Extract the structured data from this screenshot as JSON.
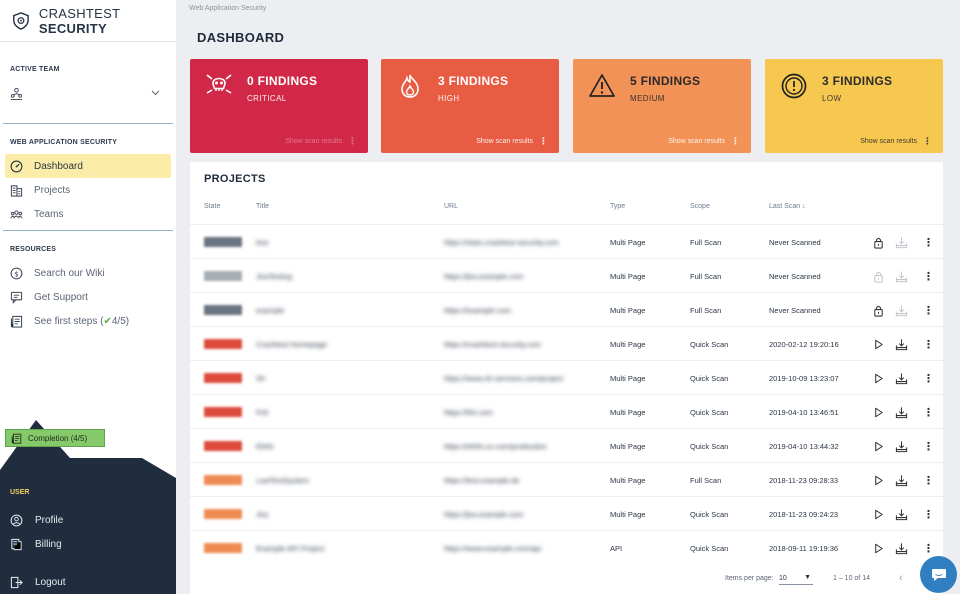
{
  "brand": {
    "name_light": "CRASHTEST",
    "name_bold": "SECURITY"
  },
  "sidebar": {
    "active_team_label": "ACTIVE TEAM",
    "was_label": "WEB APPLICATION SECURITY",
    "nav": [
      {
        "label": "Dashboard",
        "icon": "dashboard-icon"
      },
      {
        "label": "Projects",
        "icon": "building-icon"
      },
      {
        "label": "Teams",
        "icon": "team-icon"
      }
    ],
    "resources_label": "RESOURCES",
    "resources": [
      {
        "label": "Search our Wiki",
        "icon": "dollar-icon"
      },
      {
        "label": "Get Support",
        "icon": "chat-icon"
      },
      {
        "label": "See first steps (",
        "check": "✔",
        "progress": "4/5)",
        "icon": "steps-icon"
      }
    ],
    "completion": "Completion (4/5)",
    "user_label": "USER",
    "user": [
      {
        "label": "Profile",
        "icon": "profile-icon"
      },
      {
        "label": "Billing",
        "icon": "billing-icon"
      }
    ],
    "logout": "Logout"
  },
  "header": {
    "breadcrumb": "Web Application Security",
    "title": "DASHBOARD"
  },
  "cards": [
    {
      "count": "0 FINDINGS",
      "severity": "CRITICAL",
      "link": "Show scan results"
    },
    {
      "count": "3 FINDINGS",
      "severity": "HIGH",
      "link": "Show scan results"
    },
    {
      "count": "5 FINDINGS",
      "severity": "MEDIUM",
      "link": "Show scan results"
    },
    {
      "count": "3 FINDINGS",
      "severity": "LOW",
      "link": "Show scan results"
    }
  ],
  "projects": {
    "title": "PROJECTS",
    "columns": [
      "State",
      "Title",
      "URL",
      "Type",
      "Scope",
      "Last Scan ↓"
    ],
    "rows": [
      {
        "title": "test",
        "url": "https://stats.crashtest-security.com",
        "type": "Multi Page",
        "scope": "Full Scan",
        "last_scan": "Never Scanned",
        "state_color": "#6a7380",
        "action": "lock"
      },
      {
        "title": "JiraTesting",
        "url": "https://jira.example.com",
        "type": "Multi Page",
        "scope": "Full Scan",
        "last_scan": "Never Scanned",
        "state_color": "#a8adb4",
        "action": "lock-disabled"
      },
      {
        "title": "example",
        "url": "https://example.com",
        "type": "Multi Page",
        "scope": "Full Scan",
        "last_scan": "Never Scanned",
        "state_color": "#6a7380",
        "action": "lock"
      },
      {
        "title": "Crashtest Homepage",
        "url": "https://crashtest-security.com",
        "type": "Multi Page",
        "scope": "Quick Scan",
        "last_scan": "2020-02-12 19:20:16",
        "state_color": "#dc4a3c",
        "action": "play"
      },
      {
        "title": "Sh",
        "url": "https://www.sh-services.com/project",
        "type": "Multi Page",
        "scope": "Quick Scan",
        "last_scan": "2019-10-09 13:23:07",
        "state_color": "#dc4a3c",
        "action": "play"
      },
      {
        "title": "Fsh",
        "url": "https://fsh.com",
        "type": "Multi Page",
        "scope": "Quick Scan",
        "last_scan": "2019-04-10 13:46:51",
        "state_color": "#dc4a3c",
        "action": "play"
      },
      {
        "title": "Ehhh",
        "url": "https://ehhh.co.com/production",
        "type": "Multi Page",
        "scope": "Quick Scan",
        "last_scan": "2019-04-10 13:44:32",
        "state_color": "#dc4a3c",
        "action": "play"
      },
      {
        "title": "LastTestSystem",
        "url": "https://test.example.de",
        "type": "Multi Page",
        "scope": "Full Scan",
        "last_scan": "2018-11-23 09:28:33",
        "state_color": "#ef8b52",
        "action": "play"
      },
      {
        "title": "Jira",
        "url": "https://jira.example.com",
        "type": "Multi Page",
        "scope": "Quick Scan",
        "last_scan": "2018-11-23 09:24:23",
        "state_color": "#ef8b52",
        "action": "play"
      },
      {
        "title": "Example API Project",
        "url": "https://www.example.com/api",
        "type": "API",
        "scope": "Quick Scan",
        "last_scan": "2018-09-11 19:19:36",
        "state_color": "#ef8b52",
        "action": "play"
      }
    ],
    "pager": {
      "items_label": "Items per page:",
      "per_page": "10",
      "range": "1 – 10 of 14"
    }
  },
  "colors": {
    "critical": "#d22848",
    "high": "#e85c44",
    "medium": "#f29256",
    "low": "#f6c84f",
    "sidebar_dark": "#1f2d3f",
    "accent": "#fbeda8"
  }
}
